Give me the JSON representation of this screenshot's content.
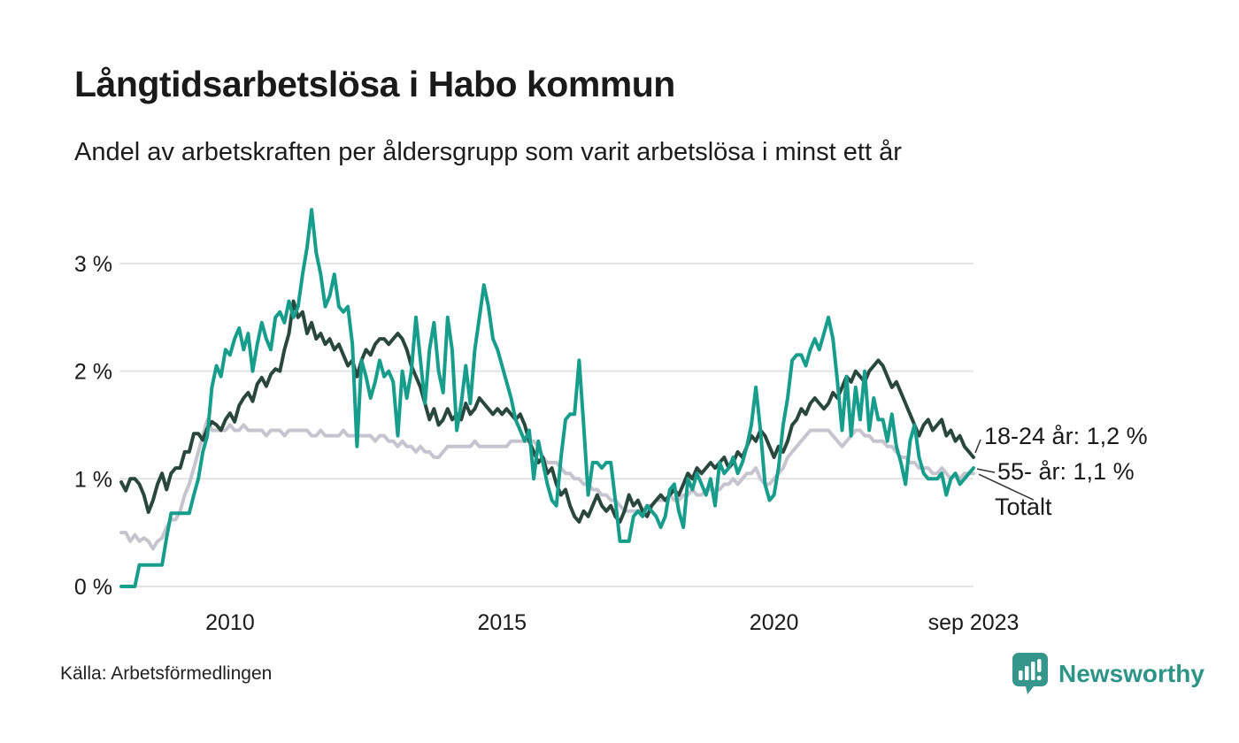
{
  "header": {
    "title": "Långtidsarbetslösa i Habo kommun",
    "subtitle": "Andel av arbetskraften per åldersgrupp som varit arbetslösa i minst ett år"
  },
  "chart_data": {
    "type": "line",
    "title": "Långtidsarbetslösa i Habo kommun",
    "subtitle": "Andel av arbetskraften per åldersgrupp som varit arbetslösa i minst ett år",
    "x_unit": "month",
    "x_start": "2008-01",
    "x_end": "2023-09",
    "xlabel": "",
    "ylabel": "",
    "ylim": [
      0,
      3.55
    ],
    "grid": "horizontal",
    "legend_position": "right-annotations",
    "xticks": [
      {
        "label": "2010",
        "month_index": 24
      },
      {
        "label": "2015",
        "month_index": 84
      },
      {
        "label": "2020",
        "month_index": 144
      },
      {
        "label": "sep 2023",
        "month_index": 188
      }
    ],
    "yticks": [
      {
        "label": "0 %",
        "value": 0
      },
      {
        "label": "1 %",
        "value": 1
      },
      {
        "label": "2 %",
        "value": 2
      },
      {
        "label": "3 %",
        "value": 3
      }
    ],
    "series": [
      {
        "name": "18-24 år",
        "color": "#2a473e",
        "values": [
          0.97,
          0.89,
          1.0,
          1.0,
          0.95,
          0.85,
          0.69,
          0.8,
          0.95,
          1.05,
          0.9,
          1.05,
          1.1,
          1.1,
          1.25,
          1.25,
          1.42,
          1.42,
          1.36,
          1.47,
          1.53,
          1.5,
          1.45,
          1.55,
          1.61,
          1.53,
          1.68,
          1.75,
          1.8,
          1.72,
          1.88,
          1.94,
          1.86,
          1.97,
          2.02,
          2.0,
          2.2,
          2.35,
          2.65,
          2.5,
          2.55,
          2.35,
          2.45,
          2.3,
          2.35,
          2.25,
          2.3,
          2.2,
          2.25,
          2.15,
          2.05,
          2.1,
          1.95,
          2.1,
          2.2,
          2.15,
          2.25,
          2.3,
          2.3,
          2.25,
          2.3,
          2.35,
          2.3,
          2.2,
          2.05,
          1.95,
          1.85,
          1.7,
          1.55,
          1.65,
          1.5,
          1.55,
          1.65,
          1.55,
          1.6,
          1.55,
          1.7,
          1.6,
          1.65,
          1.75,
          1.7,
          1.65,
          1.6,
          1.65,
          1.6,
          1.65,
          1.6,
          1.55,
          1.6,
          1.5,
          1.35,
          1.25,
          1.15,
          1.2,
          1.05,
          1.1,
          0.95,
          0.85,
          0.9,
          0.75,
          0.65,
          0.6,
          0.7,
          0.65,
          0.75,
          0.85,
          0.75,
          0.7,
          0.75,
          0.65,
          0.6,
          0.7,
          0.85,
          0.75,
          0.8,
          0.7,
          0.65,
          0.75,
          0.8,
          0.85,
          0.8,
          0.85,
          0.9,
          0.85,
          0.95,
          1.05,
          1.0,
          1.1,
          1.05,
          1.1,
          1.15,
          1.1,
          1.15,
          1.2,
          1.1,
          1.15,
          1.25,
          1.2,
          1.3,
          1.4,
          1.35,
          1.45,
          1.4,
          1.3,
          1.2,
          1.3,
          1.25,
          1.35,
          1.5,
          1.55,
          1.65,
          1.6,
          1.7,
          1.75,
          1.7,
          1.65,
          1.7,
          1.8,
          1.75,
          1.85,
          1.95,
          1.9,
          2.0,
          1.95,
          1.9,
          2.0,
          2.05,
          2.1,
          2.05,
          1.95,
          1.85,
          1.9,
          1.8,
          1.7,
          1.6,
          1.5,
          1.4,
          1.5,
          1.55,
          1.45,
          1.5,
          1.55,
          1.4,
          1.45,
          1.35,
          1.4,
          1.3,
          1.25,
          1.2
        ]
      },
      {
        "name": "55- år",
        "color": "#179d8b",
        "values": [
          0.0,
          0.0,
          0.0,
          0.0,
          0.2,
          0.2,
          0.2,
          0.2,
          0.2,
          0.2,
          0.45,
          0.68,
          0.68,
          0.68,
          0.68,
          0.68,
          0.85,
          1.0,
          1.25,
          1.4,
          1.85,
          2.05,
          1.95,
          2.2,
          2.15,
          2.3,
          2.4,
          2.2,
          2.35,
          2.0,
          2.25,
          2.45,
          2.3,
          2.2,
          2.5,
          2.55,
          2.45,
          2.65,
          2.5,
          2.6,
          2.9,
          3.15,
          3.5,
          3.1,
          2.9,
          2.6,
          2.7,
          2.9,
          2.6,
          2.55,
          2.6,
          2.25,
          1.3,
          2.1,
          1.95,
          1.75,
          1.9,
          2.1,
          1.95,
          2.0,
          1.9,
          1.4,
          2.0,
          1.75,
          2.0,
          2.5,
          2.1,
          1.7,
          2.2,
          2.45,
          2.0,
          1.8,
          2.5,
          2.2,
          1.45,
          1.7,
          2.05,
          1.7,
          2.2,
          2.5,
          2.8,
          2.6,
          2.3,
          2.2,
          2.05,
          1.9,
          1.75,
          1.55,
          1.45,
          1.35,
          1.45,
          1.0,
          1.35,
          1.15,
          0.95,
          0.8,
          0.75,
          1.2,
          1.55,
          1.6,
          1.6,
          2.1,
          1.5,
          0.85,
          1.15,
          1.15,
          1.1,
          1.15,
          1.15,
          0.8,
          0.42,
          0.42,
          0.42,
          0.65,
          0.7,
          0.65,
          0.75,
          0.7,
          0.65,
          0.55,
          0.65,
          0.9,
          0.95,
          0.7,
          0.55,
          1.0,
          0.9,
          1.05,
          0.95,
          0.85,
          1.0,
          0.75,
          1.15,
          1.05,
          1.1,
          1.2,
          1.05,
          1.15,
          1.3,
          1.5,
          1.85,
          1.45,
          0.95,
          0.8,
          0.85,
          1.1,
          1.5,
          1.75,
          2.1,
          2.15,
          2.15,
          2.05,
          2.2,
          2.3,
          2.2,
          2.35,
          2.5,
          2.3,
          1.9,
          1.45,
          1.95,
          1.4,
          1.85,
          1.55,
          2.0,
          1.45,
          1.75,
          1.55,
          1.55,
          1.35,
          1.6,
          1.3,
          1.15,
          0.95,
          1.35,
          1.5,
          1.2,
          1.05,
          1.0,
          1.0,
          1.0,
          1.05,
          0.85,
          1.0,
          1.05,
          0.95,
          1.0,
          1.05,
          1.1
        ]
      },
      {
        "name": "Totalt",
        "color": "#c6c4ce",
        "values": [
          0.5,
          0.5,
          0.42,
          0.48,
          0.42,
          0.45,
          0.42,
          0.35,
          0.42,
          0.45,
          0.55,
          0.62,
          0.62,
          0.7,
          0.85,
          0.95,
          1.1,
          1.25,
          1.4,
          1.55,
          1.45,
          1.45,
          1.45,
          1.45,
          1.5,
          1.45,
          1.45,
          1.5,
          1.45,
          1.45,
          1.45,
          1.45,
          1.4,
          1.45,
          1.45,
          1.45,
          1.4,
          1.45,
          1.45,
          1.45,
          1.45,
          1.45,
          1.4,
          1.4,
          1.45,
          1.4,
          1.4,
          1.4,
          1.4,
          1.45,
          1.4,
          1.4,
          1.4,
          1.4,
          1.4,
          1.4,
          1.35,
          1.4,
          1.4,
          1.35,
          1.35,
          1.3,
          1.35,
          1.3,
          1.3,
          1.25,
          1.3,
          1.25,
          1.25,
          1.2,
          1.2,
          1.25,
          1.3,
          1.3,
          1.3,
          1.3,
          1.3,
          1.3,
          1.35,
          1.3,
          1.3,
          1.3,
          1.3,
          1.3,
          1.3,
          1.3,
          1.35,
          1.35,
          1.35,
          1.35,
          1.35,
          1.35,
          1.3,
          1.2,
          1.15,
          1.15,
          1.15,
          1.1,
          1.05,
          1.05,
          1.0,
          1.0,
          0.95,
          0.95,
          0.9,
          0.9,
          0.85,
          0.85,
          0.8,
          0.8,
          0.75,
          0.7,
          0.7,
          0.7,
          0.7,
          0.7,
          0.75,
          0.75,
          0.8,
          0.8,
          0.8,
          0.85,
          0.8,
          0.8,
          0.85,
          0.85,
          0.9,
          0.85,
          0.85,
          0.9,
          0.9,
          0.9,
          0.9,
          0.95,
          0.95,
          1.0,
          0.95,
          1.0,
          1.05,
          1.05,
          1.1,
          1.0,
          0.95,
          0.95,
          1.0,
          1.05,
          1.1,
          1.2,
          1.25,
          1.3,
          1.35,
          1.4,
          1.45,
          1.45,
          1.45,
          1.45,
          1.45,
          1.4,
          1.35,
          1.3,
          1.35,
          1.4,
          1.45,
          1.45,
          1.4,
          1.4,
          1.35,
          1.35,
          1.35,
          1.3,
          1.3,
          1.25,
          1.2,
          1.2,
          1.15,
          1.15,
          1.1,
          1.1,
          1.1,
          1.05,
          1.05,
          1.1,
          1.05,
          1.0,
          1.05,
          1.0,
          1.05,
          1.05,
          1.05
        ]
      }
    ],
    "annotations": [
      {
        "text": "18-24 år: 1,2 %",
        "series": "18-24 år"
      },
      {
        "text": "55- år: 1,1 %",
        "series": "55- år"
      },
      {
        "text": "Totalt",
        "series": "Totalt"
      }
    ]
  },
  "footer": {
    "source": "Källa: Arbetsförmedlingen",
    "brand_name": "Newsworthy"
  },
  "colors": {
    "series_18_24": "#2a473e",
    "series_55": "#179d8b",
    "series_total": "#c6c4ce",
    "gridline": "#e3e3e5",
    "text": "#1a1a1a",
    "brand_teal": "#2e9488"
  }
}
